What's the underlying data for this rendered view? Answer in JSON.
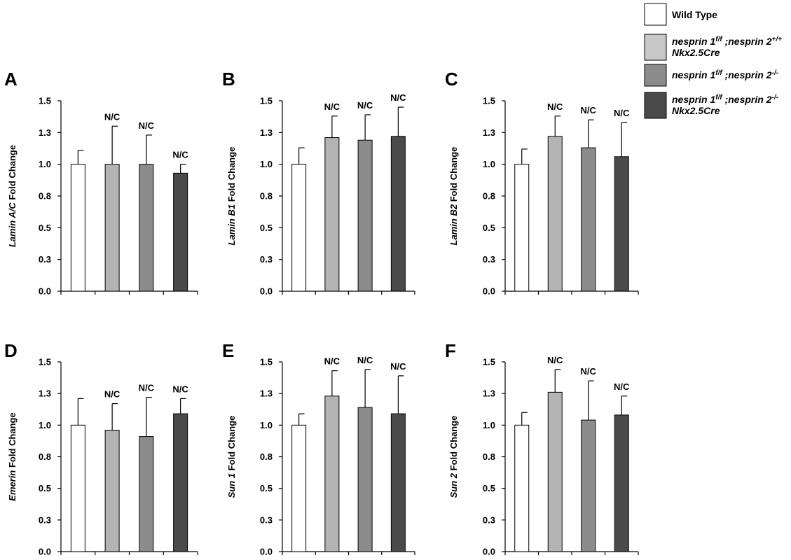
{
  "legend": {
    "items": [
      {
        "color": "#ffffff",
        "lines": [
          [
            {
              "t": "Wild Type",
              "i": false
            }
          ]
        ]
      },
      {
        "color": "#c8c8c8",
        "lines": [
          [
            {
              "t": "nesprin 1",
              "i": true
            },
            {
              "t": "f/f",
              "i": true,
              "sup": true
            },
            {
              "t": " ;nesprin 2",
              "i": true
            },
            {
              "t": "+/+",
              "i": true,
              "sup": true
            }
          ],
          [
            {
              "t": "Nkx2.5Cre",
              "i": true
            }
          ]
        ]
      },
      {
        "color": "#8c8c8c",
        "lines": [
          [
            {
              "t": "nesprin 1",
              "i": true
            },
            {
              "t": "f/f",
              "i": true,
              "sup": true
            },
            {
              "t": " ;nesprin 2",
              "i": true
            },
            {
              "t": "-/-",
              "i": true,
              "sup": true
            }
          ]
        ]
      },
      {
        "color": "#4a4a4a",
        "lines": [
          [
            {
              "t": "nesprin 1",
              "i": true
            },
            {
              "t": "f/f",
              "i": true,
              "sup": true
            },
            {
              "t": " ;nesprin 2",
              "i": true
            },
            {
              "t": "-/-",
              "i": true,
              "sup": true
            }
          ],
          [
            {
              "t": "Nkx2.5Cre",
              "i": true
            }
          ]
        ]
      }
    ]
  },
  "chart_data": [
    {
      "type": "bar",
      "panel": "A",
      "ylabel_italic": "Lamin A/C",
      "ylabel_rest": " Fold Change",
      "yticks": [
        "0.0",
        "0.3",
        "0.5",
        "0.8",
        "1.0",
        "1.3",
        "1.5"
      ],
      "ylim": [
        0,
        1.5
      ],
      "colors": [
        "#ffffff",
        "#b4b4b4",
        "#8c8c8c",
        "#4a4a4a"
      ],
      "values": [
        1.0,
        1.0,
        1.0,
        0.93
      ],
      "errors": [
        0.11,
        0.3,
        0.23,
        0.07
      ],
      "labels": [
        "",
        "N/C",
        "N/C",
        "N/C"
      ]
    },
    {
      "type": "bar",
      "panel": "B",
      "ylabel_italic": "Lamin B1",
      "ylabel_rest": " Fold Change",
      "yticks": [
        "0.0",
        "0.3",
        "0.5",
        "0.8",
        "1.0",
        "1.3",
        "1.5"
      ],
      "ylim": [
        0,
        1.5
      ],
      "colors": [
        "#ffffff",
        "#b4b4b4",
        "#8c8c8c",
        "#4a4a4a"
      ],
      "values": [
        1.0,
        1.21,
        1.19,
        1.22
      ],
      "errors": [
        0.13,
        0.17,
        0.2,
        0.23
      ],
      "labels": [
        "",
        "N/C",
        "N/C",
        "N/C"
      ]
    },
    {
      "type": "bar",
      "panel": "C",
      "ylabel_italic": "Lamin B2",
      "ylabel_rest": " Fold Change",
      "yticks": [
        "0.0",
        "0.3",
        "0.5",
        "0.8",
        "1.0",
        "1.3",
        "1.5"
      ],
      "ylim": [
        0,
        1.5
      ],
      "colors": [
        "#ffffff",
        "#b4b4b4",
        "#8c8c8c",
        "#4a4a4a"
      ],
      "values": [
        1.0,
        1.22,
        1.13,
        1.06
      ],
      "errors": [
        0.12,
        0.16,
        0.22,
        0.27
      ],
      "labels": [
        "",
        "N/C",
        "N/C",
        "N/C"
      ]
    },
    {
      "type": "bar",
      "panel": "D",
      "ylabel_italic": "Emerin",
      "ylabel_rest": " Fold Change",
      "yticks": [
        "0.0",
        "0.3",
        "0.5",
        "0.8",
        "1.0",
        "1.3",
        "1.5"
      ],
      "ylim": [
        0,
        1.5
      ],
      "colors": [
        "#ffffff",
        "#b4b4b4",
        "#8c8c8c",
        "#4a4a4a"
      ],
      "values": [
        1.0,
        0.96,
        0.91,
        1.09
      ],
      "errors": [
        0.21,
        0.21,
        0.31,
        0.12
      ],
      "labels": [
        "",
        "N/C",
        "N/C",
        "N/C"
      ]
    },
    {
      "type": "bar",
      "panel": "E",
      "ylabel_italic": "Sun 1",
      "ylabel_rest": " Fold Change",
      "yticks": [
        "0.0",
        "0.3",
        "0.5",
        "0.8",
        "1.0",
        "1.3",
        "1.5"
      ],
      "ylim": [
        0,
        1.5
      ],
      "colors": [
        "#ffffff",
        "#b4b4b4",
        "#8c8c8c",
        "#4a4a4a"
      ],
      "values": [
        1.0,
        1.23,
        1.14,
        1.09
      ],
      "errors": [
        0.09,
        0.2,
        0.3,
        0.3
      ],
      "labels": [
        "",
        "N/C",
        "N/C",
        "N/C"
      ]
    },
    {
      "type": "bar",
      "panel": "F",
      "ylabel_italic": "Sun 2",
      "ylabel_rest": " Fold Change",
      "yticks": [
        "0.0",
        "0.3",
        "0.5",
        "0.8",
        "1.0",
        "1.3",
        "1.5"
      ],
      "ylim": [
        0,
        1.5
      ],
      "colors": [
        "#ffffff",
        "#b4b4b4",
        "#8c8c8c",
        "#4a4a4a"
      ],
      "values": [
        1.0,
        1.26,
        1.04,
        1.08
      ],
      "errors": [
        0.1,
        0.18,
        0.31,
        0.15
      ],
      "labels": [
        "",
        "N/C",
        "N/C",
        "N/C"
      ]
    }
  ]
}
